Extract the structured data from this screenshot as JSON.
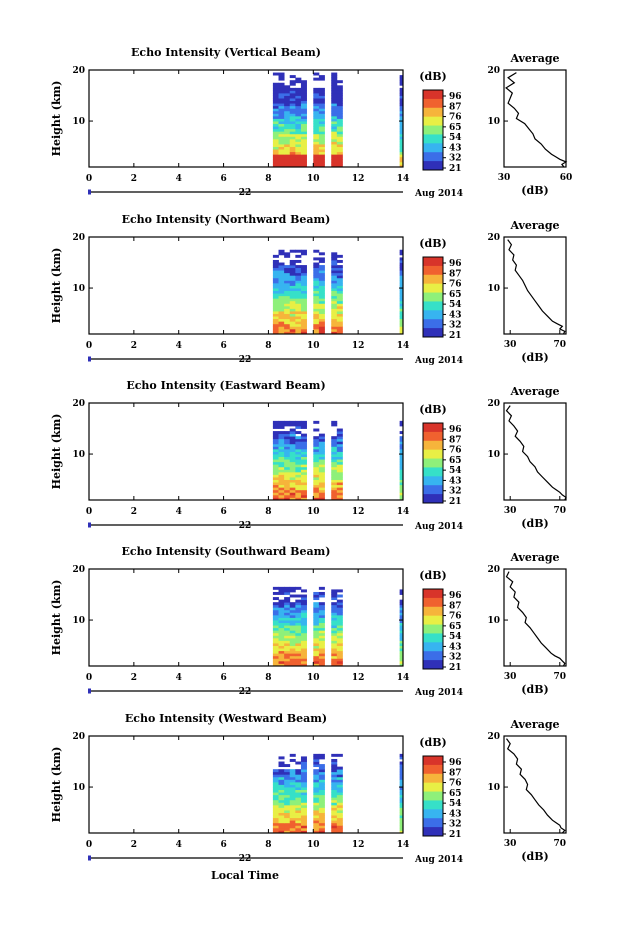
{
  "figure": {
    "xlabel_shared": "Local Time",
    "colorbar_unit": "(dB)",
    "colorbar_ticks": [
      "96",
      "87",
      "76",
      "65",
      "54",
      "43",
      "32",
      "21"
    ],
    "date_day": "22",
    "date_month_year": "Aug 2014",
    "colors": [
      "#2f30b8",
      "#3b6ee8",
      "#37b4f0",
      "#36e0c8",
      "#8ef07a",
      "#e8ef45",
      "#f6b43b",
      "#f0612f",
      "#d8342a"
    ]
  },
  "chart_data": [
    {
      "type": "heatmap",
      "title": "Echo Intensity (Vertical Beam)",
      "ylabel": "Height (km)",
      "xlim": [
        0,
        14
      ],
      "ylim": [
        1,
        20
      ],
      "x_ticks": [
        "0",
        "2",
        "4",
        "6",
        "8",
        "10",
        "12",
        "14"
      ],
      "y_ticks": [
        "20",
        "10"
      ],
      "data_segments": [
        [
          8.2,
          9.7
        ],
        [
          10.0,
          10.5
        ],
        [
          10.8,
          11.3
        ],
        [
          13.85,
          14.0
        ]
      ],
      "top_height": 19,
      "profile": {
        "title": "Average",
        "xlabel": "(dB)",
        "xlim": [
          30,
          60
        ],
        "x_ticks": [
          "30",
          "60"
        ],
        "y_ticks": [
          "20",
          "10"
        ],
        "ylim": [
          1,
          20
        ],
        "x": [
          36,
          32,
          35,
          31,
          34,
          33,
          32,
          35,
          37,
          36,
          40,
          42,
          44,
          45,
          48,
          50,
          53,
          55,
          57,
          60,
          58,
          59
        ],
        "y": [
          19.5,
          18.5,
          17.5,
          16.5,
          15.5,
          14.5,
          13.5,
          12.5,
          11.5,
          10.5,
          9.5,
          8.5,
          7.5,
          6.5,
          5.5,
          4.5,
          3.5,
          3.0,
          2.5,
          2.0,
          1.5,
          1.0
        ]
      }
    },
    {
      "type": "heatmap",
      "title": "Echo Intensity (Northward Beam)",
      "ylabel": "Height (km)",
      "xlim": [
        0,
        14
      ],
      "ylim": [
        1,
        20
      ],
      "x_ticks": [
        "0",
        "2",
        "4",
        "6",
        "8",
        "10",
        "12",
        "14"
      ],
      "y_ticks": [
        "20",
        "10"
      ],
      "data_segments": [
        [
          8.2,
          9.7
        ],
        [
          10.0,
          10.5
        ],
        [
          10.8,
          11.3
        ],
        [
          13.85,
          14.0
        ]
      ],
      "top_height": 17,
      "profile": {
        "title": "Average",
        "xlabel": "(dB)",
        "xlim": [
          25,
          75
        ],
        "x_ticks": [
          "30",
          "70"
        ],
        "y_ticks": [
          "20",
          "10"
        ],
        "ylim": [
          1,
          20
        ],
        "x": [
          28,
          31,
          29,
          33,
          32,
          35,
          34,
          37,
          40,
          42,
          44,
          47,
          50,
          53,
          56,
          60,
          64,
          68,
          72,
          70,
          74,
          73
        ],
        "y": [
          19.5,
          18.5,
          17.5,
          16.5,
          15.5,
          14.5,
          13.5,
          12.5,
          11.5,
          10.5,
          9.5,
          8.5,
          7.5,
          6.5,
          5.5,
          4.5,
          3.5,
          3.0,
          2.5,
          2.0,
          1.5,
          1.0
        ]
      }
    },
    {
      "type": "heatmap",
      "title": "Echo Intensity (Eastward Beam)",
      "ylabel": "Height (km)",
      "xlim": [
        0,
        14
      ],
      "ylim": [
        1,
        20
      ],
      "x_ticks": [
        "0",
        "2",
        "4",
        "6",
        "8",
        "10",
        "12",
        "14"
      ],
      "y_ticks": [
        "20",
        "10"
      ],
      "data_segments": [
        [
          8.2,
          9.7
        ],
        [
          10.0,
          10.5
        ],
        [
          10.8,
          11.3
        ],
        [
          13.85,
          14.0
        ]
      ],
      "top_height": 16,
      "profile": {
        "title": "Average",
        "xlabel": "(dB)",
        "xlim": [
          25,
          75
        ],
        "x_ticks": [
          "30",
          "70"
        ],
        "y_ticks": [
          "20",
          "10"
        ],
        "ylim": [
          1,
          20
        ],
        "x": [
          30,
          27,
          31,
          29,
          33,
          36,
          34,
          38,
          41,
          40,
          44,
          46,
          50,
          52,
          56,
          60,
          64,
          67,
          70,
          72,
          75,
          74
        ],
        "y": [
          19.5,
          18.5,
          17.5,
          16.5,
          15.5,
          14.5,
          13.5,
          12.5,
          11.5,
          10.5,
          9.5,
          8.5,
          7.5,
          6.5,
          5.5,
          4.5,
          3.5,
          3.0,
          2.5,
          2.0,
          1.5,
          1.0
        ]
      }
    },
    {
      "type": "heatmap",
      "title": "Echo Intensity (Southward Beam)",
      "ylabel": "Height (km)",
      "xlim": [
        0,
        14
      ],
      "ylim": [
        1,
        20
      ],
      "x_ticks": [
        "0",
        "2",
        "4",
        "6",
        "8",
        "10",
        "12",
        "14"
      ],
      "y_ticks": [
        "20",
        "10"
      ],
      "data_segments": [
        [
          8.2,
          9.7
        ],
        [
          10.0,
          10.5
        ],
        [
          10.8,
          11.3
        ],
        [
          13.85,
          14.0
        ]
      ],
      "top_height": 16,
      "profile": {
        "title": "Average",
        "xlabel": "(dB)",
        "xlim": [
          25,
          75
        ],
        "x_ticks": [
          "30",
          "70"
        ],
        "y_ticks": [
          "20",
          "10"
        ],
        "ylim": [
          1,
          20
        ],
        "x": [
          29,
          27,
          32,
          30,
          34,
          33,
          37,
          36,
          40,
          43,
          42,
          46,
          49,
          52,
          55,
          59,
          63,
          66,
          70,
          72,
          74,
          73
        ],
        "y": [
          19.5,
          18.5,
          17.5,
          16.5,
          15.5,
          14.5,
          13.5,
          12.5,
          11.5,
          10.5,
          9.5,
          8.5,
          7.5,
          6.5,
          5.5,
          4.5,
          3.5,
          3.0,
          2.5,
          2.0,
          1.5,
          1.0
        ]
      }
    },
    {
      "type": "heatmap",
      "title": "Echo Intensity (Westward Beam)",
      "ylabel": "Height (km)",
      "xlim": [
        0,
        14
      ],
      "ylim": [
        1,
        20
      ],
      "x_ticks": [
        "0",
        "2",
        "4",
        "6",
        "8",
        "10",
        "12",
        "14"
      ],
      "y_ticks": [
        "20",
        "10"
      ],
      "data_segments": [
        [
          8.2,
          9.7
        ],
        [
          10.0,
          10.5
        ],
        [
          10.8,
          11.3
        ],
        [
          13.85,
          14.0
        ]
      ],
      "top_height": 16,
      "profile": {
        "title": "Average",
        "xlabel": "(dB)",
        "xlim": [
          25,
          75
        ],
        "x_ticks": [
          "30",
          "70"
        ],
        "y_ticks": [
          "20",
          "10"
        ],
        "ylim": [
          1,
          20
        ],
        "x": [
          27,
          30,
          28,
          33,
          36,
          35,
          39,
          38,
          42,
          44,
          43,
          47,
          50,
          53,
          57,
          60,
          64,
          67,
          70,
          71,
          74,
          72
        ],
        "y": [
          19.5,
          18.5,
          17.5,
          16.5,
          15.5,
          14.5,
          13.5,
          12.5,
          11.5,
          10.5,
          9.5,
          8.5,
          7.5,
          6.5,
          5.5,
          4.5,
          3.5,
          3.0,
          2.5,
          2.0,
          1.5,
          1.0
        ]
      }
    }
  ]
}
